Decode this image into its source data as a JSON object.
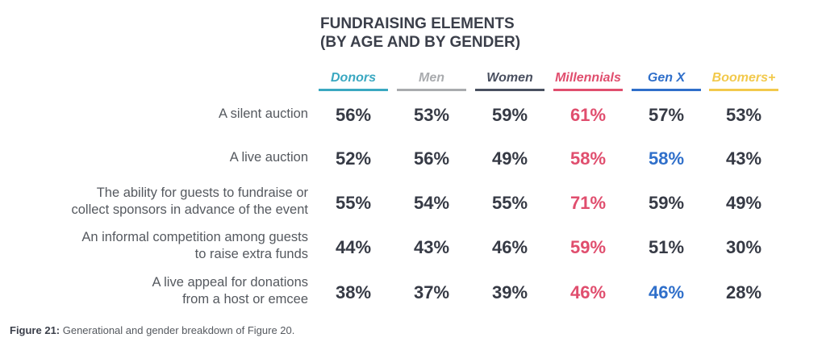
{
  "chart_data": {
    "type": "table",
    "title_line1": "FUNDRAISING ELEMENTS",
    "title_line2": "(BY AGE AND BY GENDER)",
    "columns": [
      {
        "key": "donors",
        "label": "Donors",
        "color": "#3aa8c1"
      },
      {
        "key": "men",
        "label": "Men",
        "color": "#a9abae"
      },
      {
        "key": "women",
        "label": "Women",
        "color": "#4a5060"
      },
      {
        "key": "millennials",
        "label": "Millennials",
        "color": "#e04e6e"
      },
      {
        "key": "genx",
        "label": "Gen X",
        "color": "#2f6fca"
      },
      {
        "key": "boomers",
        "label": "Boomers+",
        "color": "#f2c94c"
      }
    ],
    "rows": [
      {
        "label_lines": [
          "A silent auction"
        ],
        "values": [
          "56%",
          "53%",
          "59%",
          "61%",
          "57%",
          "53%"
        ]
      },
      {
        "label_lines": [
          "A live auction"
        ],
        "values": [
          "52%",
          "56%",
          "49%",
          "58%",
          "58%",
          "43%"
        ]
      },
      {
        "label_lines": [
          "The ability for guests to fundraise or",
          "collect sponsors in advance of the event"
        ],
        "values": [
          "55%",
          "54%",
          "55%",
          "71%",
          "59%",
          "49%"
        ]
      },
      {
        "label_lines": [
          "An informal competition among guests",
          "to raise extra funds"
        ],
        "values": [
          "44%",
          "43%",
          "46%",
          "59%",
          "51%",
          "30%"
        ]
      },
      {
        "label_lines": [
          "A live appeal for donations",
          "from a host or emcee"
        ],
        "values": [
          "38%",
          "37%",
          "39%",
          "46%",
          "46%",
          "28%"
        ]
      }
    ],
    "highlight_colors": {
      "millennials_all": "#e04e6e",
      "genx_highlight": "#2f6fca",
      "default_value": "#363a45"
    },
    "genx_highlighted_rows": [
      1,
      4
    ]
  },
  "caption": {
    "label": "Figure 21:",
    "text": " Generational and gender breakdown of Figure 20."
  }
}
